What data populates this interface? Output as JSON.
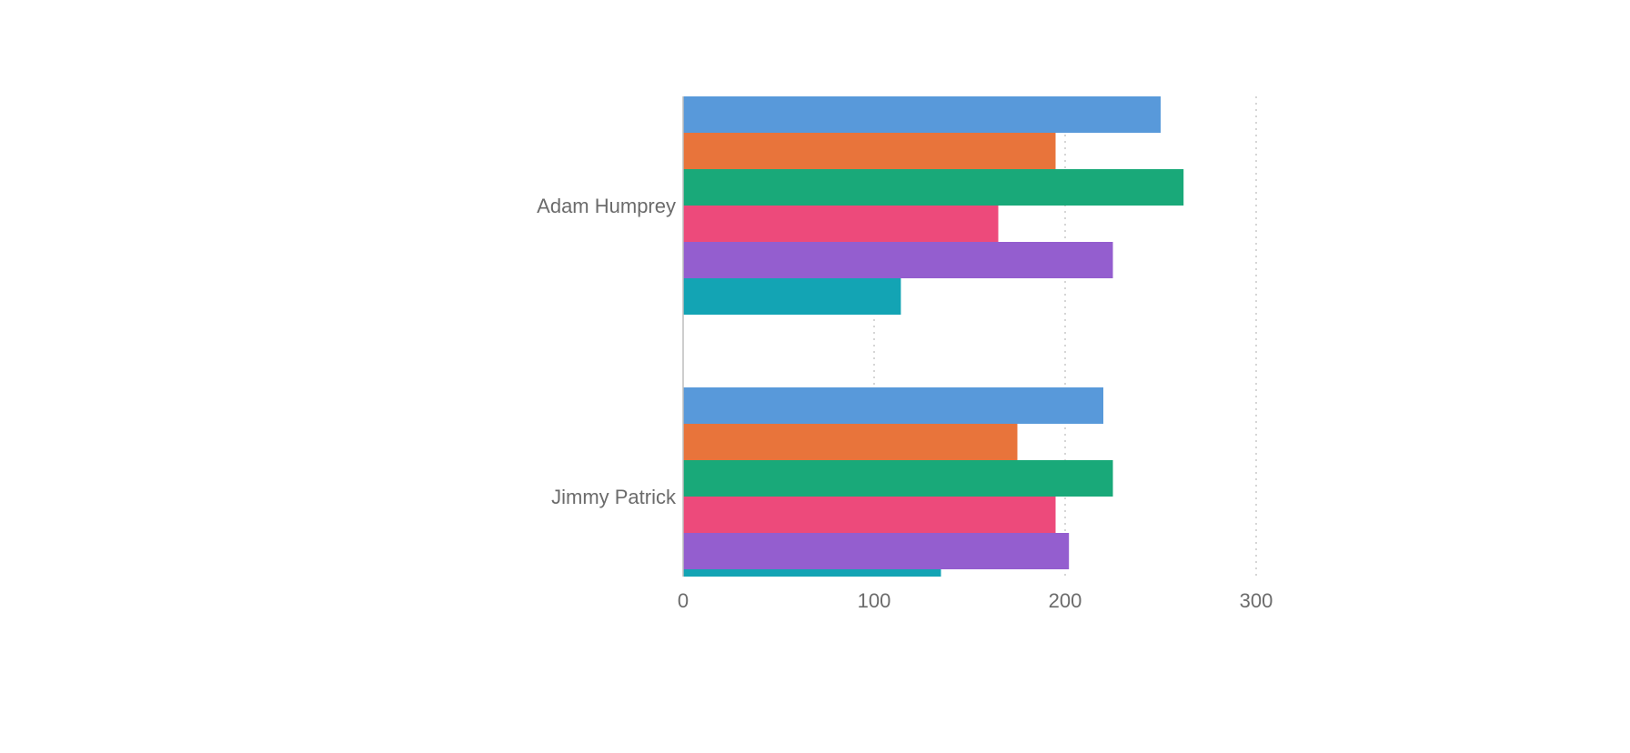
{
  "chart_data": {
    "type": "bar",
    "orientation": "horizontal",
    "title": "",
    "xlabel": "",
    "ylabel": "",
    "categories": [
      "Adam Humprey",
      "Jimmy Patrick"
    ],
    "series": [
      {
        "color": "#5899DA",
        "values": [
          250,
          220
        ]
      },
      {
        "color": "#E8743B",
        "values": [
          195,
          175
        ]
      },
      {
        "color": "#19A979",
        "values": [
          262,
          225
        ]
      },
      {
        "color": "#ED4A7B",
        "values": [
          165,
          195
        ]
      },
      {
        "color": "#945ECF",
        "values": [
          225,
          202
        ]
      },
      {
        "color": "#13A4B4",
        "values": [
          114,
          135
        ]
      }
    ],
    "xlim": [
      0,
      300
    ],
    "xticks": [
      0,
      100,
      200,
      300
    ],
    "xtick_labels": [
      "0",
      "100",
      "200",
      "300"
    ],
    "grid": true,
    "legend": "none"
  }
}
